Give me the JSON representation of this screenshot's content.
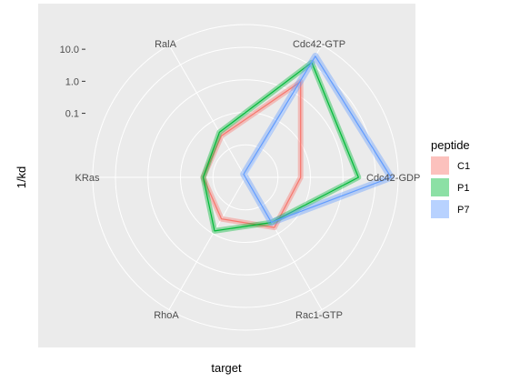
{
  "chart_data": {
    "type": "radar",
    "xlabel": "target",
    "ylabel": "1/kd",
    "y_scale": "log",
    "y_ticks": [
      "0.1",
      "1.0",
      "10.0"
    ],
    "categories": [
      "Cdc42-GDP",
      "Rac1-GTP",
      "RhoA",
      "KRas",
      "RalA",
      "Cdc42-GTP"
    ],
    "legend": {
      "title": "peptide",
      "position": "right"
    },
    "series": [
      {
        "name": "C1",
        "color": "#F8766D",
        "values": [
          0.05,
          0.06,
          0.03,
          0.02,
          0.03,
          2.5
        ],
        "band": 0.2
      },
      {
        "name": "P1",
        "color": "#00BA38",
        "values": [
          3.0,
          0.04,
          0.08,
          0.02,
          0.04,
          12.0
        ],
        "band": 0.2
      },
      {
        "name": "P7",
        "color": "#619CFF",
        "values": [
          30.0,
          0.04,
          null,
          null,
          0.0013,
          20.0
        ],
        "band": 0.25
      }
    ],
    "grid": true,
    "background": "#EBEBEB"
  }
}
